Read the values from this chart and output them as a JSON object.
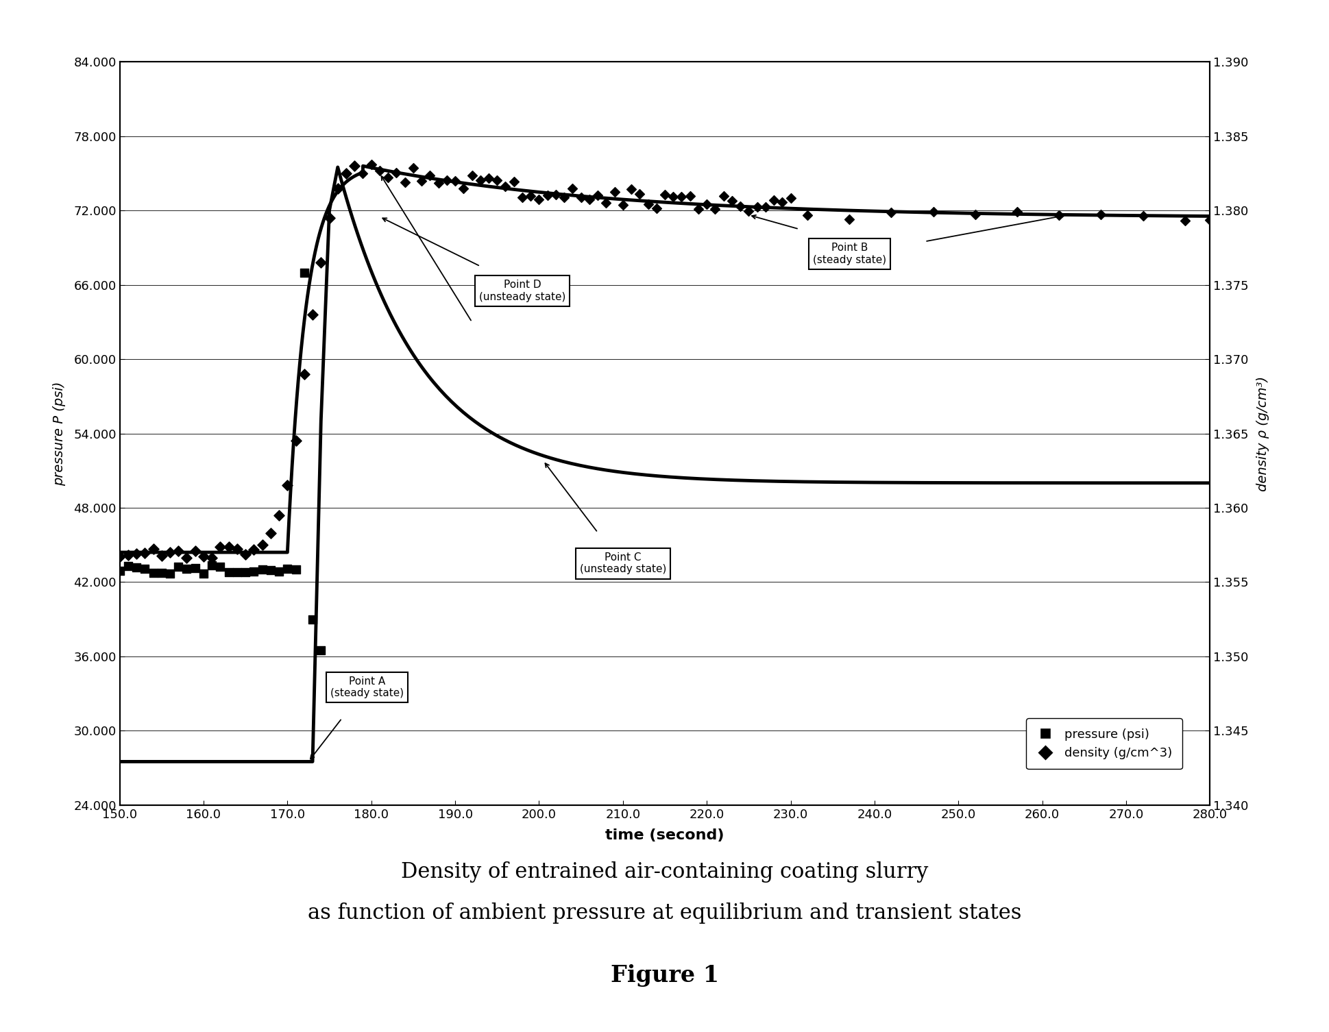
{
  "title_line1": "Density of entrained air-containing coating slurry",
  "title_line2": "as function of ambient pressure at equilibrium and transient states",
  "figure_label": "Figure 1",
  "xlabel": "time (second)",
  "ylabel_left": "pressure P (psi)",
  "ylabel_right": "density ρ (g/cm³)",
  "xlim": [
    150.0,
    280.0
  ],
  "ylim_left": [
    24.0,
    84.0
  ],
  "ylim_right": [
    1.34,
    1.39
  ],
  "xticks": [
    150.0,
    160.0,
    170.0,
    180.0,
    190.0,
    200.0,
    210.0,
    220.0,
    230.0,
    240.0,
    250.0,
    260.0,
    270.0,
    280.0
  ],
  "yticks_left": [
    24.0,
    30.0,
    36.0,
    42.0,
    48.0,
    54.0,
    60.0,
    66.0,
    72.0,
    78.0,
    84.0
  ],
  "yticks_right": [
    1.34,
    1.345,
    1.35,
    1.355,
    1.36,
    1.365,
    1.37,
    1.375,
    1.38,
    1.385,
    1.39
  ],
  "background_color": "#ffffff"
}
